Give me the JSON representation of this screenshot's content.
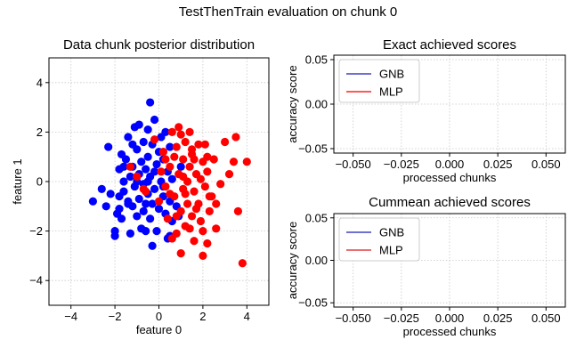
{
  "figure": {
    "suptitle": "TestThenTrain evaluation on chunk 0"
  },
  "chart_data": [
    {
      "type": "scatter",
      "title": "Data chunk posterior distribution",
      "xlabel": "feature 0",
      "ylabel": "feature 1",
      "xlim": [
        -5,
        5
      ],
      "ylim": [
        -5,
        5
      ],
      "xticks": [
        "−4",
        "−2",
        "0",
        "2",
        "4"
      ],
      "yticks": [
        "−4",
        "−2",
        "0",
        "2",
        "4"
      ],
      "grid": true,
      "series": [
        {
          "color": "#0000ff",
          "points": [
            [
              -3.0,
              -0.8
            ],
            [
              -2.4,
              -1.0
            ],
            [
              -2.2,
              -0.5
            ],
            [
              -2.0,
              -2.0
            ],
            [
              -2.0,
              -2.2
            ],
            [
              -1.9,
              -1.3
            ],
            [
              -1.8,
              -0.6
            ],
            [
              -1.8,
              0.5
            ],
            [
              -1.7,
              1.1
            ],
            [
              -1.7,
              -1.5
            ],
            [
              -1.6,
              0.0
            ],
            [
              -1.6,
              -0.4
            ],
            [
              -1.5,
              0.9
            ],
            [
              -1.4,
              1.8
            ],
            [
              -1.4,
              -0.9
            ],
            [
              -1.3,
              0.2
            ],
            [
              -1.3,
              -2.1
            ],
            [
              -1.2,
              0.6
            ],
            [
              -1.2,
              -1.0
            ],
            [
              -1.1,
              2.2
            ],
            [
              -1.1,
              -0.2
            ],
            [
              -1.0,
              1.3
            ],
            [
              -1.0,
              -1.4
            ],
            [
              -0.9,
              0.3
            ],
            [
              -0.9,
              -0.7
            ],
            [
              -0.9,
              2.3
            ],
            [
              -0.8,
              0.8
            ],
            [
              -0.8,
              -1.9
            ],
            [
              -0.7,
              -0.1
            ],
            [
              -0.7,
              1.6
            ],
            [
              -0.7,
              -1.2
            ],
            [
              -0.6,
              0.5
            ],
            [
              -0.6,
              -2.0
            ],
            [
              -0.5,
              1.0
            ],
            [
              -0.5,
              -0.5
            ],
            [
              -0.5,
              2.1
            ],
            [
              -0.4,
              -1.5
            ],
            [
              -0.4,
              0.2
            ],
            [
              -0.3,
              1.5
            ],
            [
              -0.3,
              -0.9
            ],
            [
              -0.2,
              2.5
            ],
            [
              -0.2,
              -0.3
            ],
            [
              -0.1,
              0.7
            ],
            [
              -0.1,
              -2.0
            ],
            [
              0.0,
              1.2
            ],
            [
              0.0,
              -1.1
            ],
            [
              0.1,
              0.0
            ],
            [
              0.1,
              1.8
            ],
            [
              0.2,
              -0.6
            ],
            [
              0.2,
              0.9
            ],
            [
              0.3,
              -1.3
            ],
            [
              0.3,
              2.0
            ],
            [
              0.4,
              0.4
            ],
            [
              0.4,
              -2.3
            ],
            [
              0.5,
              -0.8
            ],
            [
              0.5,
              1.4
            ],
            [
              0.6,
              0.1
            ],
            [
              0.6,
              -1.6
            ],
            [
              0.8,
              -1.0
            ],
            [
              1.0,
              0.6
            ],
            [
              -0.4,
              3.2
            ],
            [
              -2.3,
              1.4
            ],
            [
              -1.4,
              -0.8
            ],
            [
              -1.0,
              0.0
            ],
            [
              -0.6,
              -0.9
            ],
            [
              -0.2,
              0.4
            ],
            [
              0.2,
              -0.2
            ],
            [
              -1.8,
              -1.1
            ],
            [
              -0.3,
              -2.6
            ],
            [
              0.5,
              -2.2
            ],
            [
              -1.6,
              0.6
            ],
            [
              -2.6,
              -0.3
            ],
            [
              -1.2,
              1.5
            ],
            [
              -0.5,
              0.0
            ],
            [
              0.9,
              -1.4
            ]
          ]
        },
        {
          "color": "#ff0000",
          "points": [
            [
              -1.3,
              0.6
            ],
            [
              -1.0,
              0.2
            ],
            [
              -0.6,
              -0.4
            ],
            [
              -0.2,
              1.7
            ],
            [
              0.0,
              -0.8
            ],
            [
              0.2,
              1.2
            ],
            [
              0.3,
              -0.2
            ],
            [
              0.4,
              -1.5
            ],
            [
              0.5,
              0.6
            ],
            [
              0.6,
              2.0
            ],
            [
              0.7,
              -0.6
            ],
            [
              0.8,
              1.4
            ],
            [
              0.8,
              -2.1
            ],
            [
              0.9,
              0.3
            ],
            [
              1.0,
              -1.2
            ],
            [
              1.0,
              1.9
            ],
            [
              1.1,
              -0.3
            ],
            [
              1.1,
              0.9
            ],
            [
              1.2,
              -1.8
            ],
            [
              1.2,
              1.6
            ],
            [
              1.3,
              0.0
            ],
            [
              1.3,
              -0.9
            ],
            [
              1.4,
              0.6
            ],
            [
              1.4,
              2.0
            ],
            [
              1.5,
              -1.4
            ],
            [
              1.5,
              1.1
            ],
            [
              1.6,
              -0.4
            ],
            [
              1.6,
              -2.4
            ],
            [
              1.7,
              0.3
            ],
            [
              1.8,
              -0.9
            ],
            [
              1.8,
              1.5
            ],
            [
              1.9,
              -1.6
            ],
            [
              2.0,
              0.8
            ],
            [
              2.0,
              -2.0
            ],
            [
              2.1,
              -0.2
            ],
            [
              2.2,
              -2.5
            ],
            [
              2.2,
              0.4
            ],
            [
              2.3,
              -1.2
            ],
            [
              2.4,
              -0.6
            ],
            [
              2.5,
              0.9
            ],
            [
              2.6,
              -1.9
            ],
            [
              2.8,
              -0.1
            ],
            [
              3.0,
              1.6
            ],
            [
              3.2,
              0.3
            ],
            [
              3.4,
              0.8
            ],
            [
              3.5,
              1.8
            ],
            [
              3.6,
              -1.2
            ],
            [
              3.8,
              -3.3
            ],
            [
              4.0,
              0.8
            ],
            [
              2.0,
              -3.0
            ],
            [
              1.0,
              -2.9
            ],
            [
              0.6,
              -2.3
            ],
            [
              0.9,
              2.2
            ],
            [
              1.5,
              1.3
            ],
            [
              2.1,
              1.5
            ],
            [
              0.3,
              0.9
            ],
            [
              0.5,
              -0.5
            ],
            [
              1.2,
              -0.5
            ],
            [
              1.7,
              -1.1
            ],
            [
              2.3,
              -0.6
            ],
            [
              1.1,
              0.2
            ],
            [
              0.7,
              1.0
            ],
            [
              1.9,
              0.1
            ],
            [
              2.2,
              1.0
            ],
            [
              -0.7,
              -0.3
            ],
            [
              0.1,
              0.4
            ],
            [
              1.4,
              -1.9
            ],
            [
              2.6,
              -0.9
            ],
            [
              0.8,
              -1.4
            ],
            [
              1.6,
              0.9
            ]
          ]
        }
      ]
    },
    {
      "type": "line",
      "title": "Exact achieved scores",
      "xlabel": "processed chunks",
      "ylabel": "accuracy score",
      "xlim": [
        -0.06,
        0.06
      ],
      "ylim": [
        -0.055,
        0.055
      ],
      "xticks": [
        "−0.050",
        "−0.025",
        "0.000",
        "0.025",
        "0.050"
      ],
      "yticks": [
        "−0.05",
        "0.00",
        "0.05"
      ],
      "grid": true,
      "legend": "top-left",
      "series": [
        {
          "name": "GNB",
          "color": "#4040c0",
          "x": [],
          "y": []
        },
        {
          "name": "MLP",
          "color": "#ff2020",
          "x": [],
          "y": []
        }
      ]
    },
    {
      "type": "line",
      "title": "Cummean achieved scores",
      "xlabel": "processed chunks",
      "ylabel": "accuracy score",
      "xlim": [
        -0.06,
        0.06
      ],
      "ylim": [
        -0.055,
        0.055
      ],
      "xticks": [
        "−0.050",
        "−0.025",
        "0.000",
        "0.025",
        "0.050"
      ],
      "yticks": [
        "−0.05",
        "0.00",
        "0.05"
      ],
      "grid": true,
      "legend": "top-left",
      "series": [
        {
          "name": "GNB",
          "color": "#4040c0",
          "x": [],
          "y": []
        },
        {
          "name": "MLP",
          "color": "#e04040",
          "x": [],
          "y": []
        }
      ]
    }
  ]
}
